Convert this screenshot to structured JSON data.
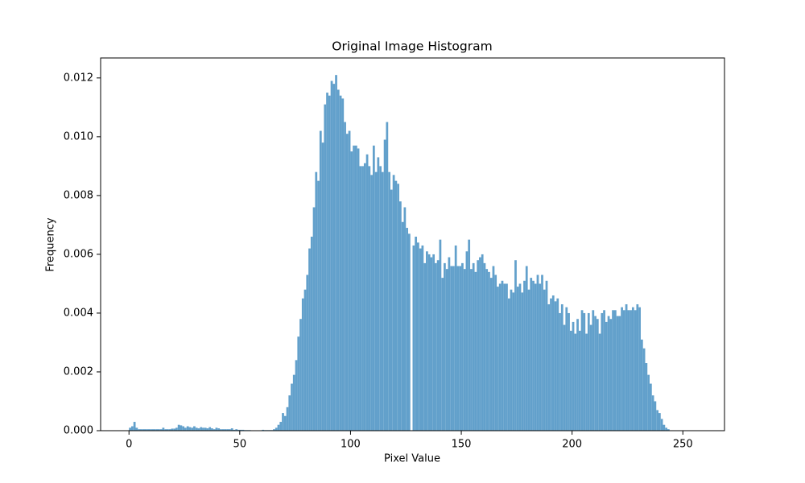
{
  "chart_data": {
    "type": "histogram",
    "title": "Original Image Histogram",
    "x_label": "Pixel Value",
    "y_label": "Frequency",
    "color": "#62a0cb",
    "bins": [
      0,
      1,
      2,
      3,
      4,
      5,
      6,
      7,
      8,
      9,
      10,
      11,
      12,
      13,
      14,
      15,
      16,
      17,
      18,
      19,
      20,
      21,
      22,
      23,
      24,
      25,
      26,
      27,
      28,
      29,
      30,
      31,
      32,
      33,
      34,
      35,
      36,
      37,
      38,
      39,
      40,
      41,
      42,
      43,
      44,
      45,
      46,
      47,
      48,
      49,
      50,
      51,
      52,
      53,
      54,
      55,
      56,
      57,
      58,
      59,
      60,
      61,
      62,
      63,
      64,
      65,
      66,
      67,
      68,
      69,
      70,
      71,
      72,
      73,
      74,
      75,
      76,
      77,
      78,
      79,
      80,
      81,
      82,
      83,
      84,
      85,
      86,
      87,
      88,
      89,
      90,
      91,
      92,
      93,
      94,
      95,
      96,
      97,
      98,
      99,
      100,
      101,
      102,
      103,
      104,
      105,
      106,
      107,
      108,
      109,
      110,
      111,
      112,
      113,
      114,
      115,
      116,
      117,
      118,
      119,
      120,
      121,
      122,
      123,
      124,
      125,
      126,
      127,
      128,
      129,
      130,
      131,
      132,
      133,
      134,
      135,
      136,
      137,
      138,
      139,
      140,
      141,
      142,
      143,
      144,
      145,
      146,
      147,
      148,
      149,
      150,
      151,
      152,
      153,
      154,
      155,
      156,
      157,
      158,
      159,
      160,
      161,
      162,
      163,
      164,
      165,
      166,
      167,
      168,
      169,
      170,
      171,
      172,
      173,
      174,
      175,
      176,
      177,
      178,
      179,
      180,
      181,
      182,
      183,
      184,
      185,
      186,
      187,
      188,
      189,
      190,
      191,
      192,
      193,
      194,
      195,
      196,
      197,
      198,
      199,
      200,
      201,
      202,
      203,
      204,
      205,
      206,
      207,
      208,
      209,
      210,
      211,
      212,
      213,
      214,
      215,
      216,
      217,
      218,
      219,
      220,
      221,
      222,
      223,
      224,
      225,
      226,
      227,
      228,
      229,
      230,
      231,
      232,
      233,
      234,
      235,
      236,
      237,
      238,
      239,
      240,
      241,
      242,
      243,
      244,
      245,
      246,
      247,
      248,
      249,
      250,
      251,
      252,
      253,
      254,
      255,
      256
    ],
    "counts": [
      0.0001,
      0.00015,
      0.0003,
      0.0001,
      5e-05,
      5e-05,
      5e-05,
      5e-05,
      5e-05,
      5e-05,
      5e-05,
      5e-05,
      5e-05,
      5e-05,
      5e-05,
      0.0001,
      5e-05,
      5e-05,
      5e-05,
      7e-05,
      7e-05,
      0.0001,
      0.0002,
      0.00018,
      0.00015,
      0.0001,
      0.00015,
      0.00012,
      0.0001,
      0.00015,
      0.0001,
      8e-05,
      0.00012,
      0.0001,
      0.0001,
      8e-05,
      0.00012,
      8e-05,
      5e-05,
      0.0001,
      8e-05,
      5e-05,
      5e-05,
      5e-05,
      5e-05,
      5e-05,
      8e-05,
      3e-05,
      5e-05,
      3e-05,
      3e-05,
      3e-05,
      2e-05,
      2e-05,
      2e-05,
      0,
      0,
      0,
      0,
      0,
      3e-05,
      2e-05,
      2e-05,
      2e-05,
      2e-05,
      5e-05,
      0.0001,
      0.0002,
      0.0003,
      0.0006,
      0.0005,
      0.0008,
      0.0012,
      0.0016,
      0.0019,
      0.0024,
      0.0032,
      0.0038,
      0.0045,
      0.0048,
      0.0053,
      0.0062,
      0.0066,
      0.0076,
      0.0088,
      0.0085,
      0.0102,
      0.0098,
      0.0111,
      0.0115,
      0.0114,
      0.0119,
      0.0118,
      0.0121,
      0.0116,
      0.0114,
      0.0113,
      0.0105,
      0.0101,
      0.0102,
      0.0095,
      0.0097,
      0.0097,
      0.0096,
      0.009,
      0.009,
      0.0091,
      0.0094,
      0.009,
      0.0087,
      0.0097,
      0.0088,
      0.0093,
      0.009,
      0.0088,
      0.0099,
      0.0105,
      0.0088,
      0.0082,
      0.0087,
      0.0085,
      0.0084,
      0.0078,
      0.0071,
      0.0076,
      0.0069,
      0.0067,
      0,
      0.0063,
      0.0066,
      0.0064,
      0.0062,
      0.0063,
      0.0057,
      0.0061,
      0.006,
      0.0059,
      0.006,
      0.0057,
      0.0058,
      0.0065,
      0.0052,
      0.0057,
      0.0055,
      0.0059,
      0.0056,
      0.0056,
      0.0063,
      0.0056,
      0.0056,
      0.0057,
      0.0055,
      0.0061,
      0.0065,
      0.0055,
      0.0057,
      0.0054,
      0.0058,
      0.0059,
      0.006,
      0.0057,
      0.0055,
      0.0054,
      0.0052,
      0.0056,
      0.0053,
      0.0049,
      0.005,
      0.0051,
      0.005,
      0.005,
      0.0045,
      0.0048,
      0.0047,
      0.0058,
      0.0049,
      0.005,
      0.0047,
      0.0051,
      0.0056,
      0.0048,
      0.0052,
      0.0051,
      0.005,
      0.0053,
      0.005,
      0.0053,
      0.0048,
      0.0051,
      0.0043,
      0.0045,
      0.0046,
      0.0044,
      0.0045,
      0.004,
      0.0043,
      0.0036,
      0.0042,
      0.004,
      0.0034,
      0.0037,
      0.0033,
      0.0038,
      0.0034,
      0.0041,
      0.004,
      0.0033,
      0.004,
      0.0036,
      0.0041,
      0.0039,
      0.0038,
      0.0033,
      0.004,
      0.0041,
      0.0037,
      0.0039,
      0.0038,
      0.0041,
      0.0041,
      0.0039,
      0.0039,
      0.0042,
      0.0041,
      0.0043,
      0.0041,
      0.0041,
      0.0042,
      0.0041,
      0.0043,
      0.0042,
      0.0031,
      0.0028,
      0.0023,
      0.0019,
      0.0016,
      0.0012,
      0.001,
      0.0007,
      0.0006,
      0.0004,
      0.0002,
      0.0001,
      5e-05,
      0,
      0,
      0,
      0,
      0,
      0,
      1e-05,
      0,
      0,
      0,
      0,
      0
    ],
    "xlim": [
      -12.8,
      268.8
    ],
    "xticks": [
      0,
      50,
      100,
      150,
      200,
      250
    ],
    "ylim": [
      0,
      0.01268
    ],
    "yticks": [
      {
        "value": 0,
        "label": "0.000"
      },
      {
        "value": 0.002,
        "label": "0.002"
      },
      {
        "value": 0.004,
        "label": "0.004"
      },
      {
        "value": 0.006,
        "label": "0.006"
      },
      {
        "value": 0.008,
        "label": "0.008"
      },
      {
        "value": 0.01,
        "label": "0.010"
      },
      {
        "value": 0.012,
        "label": "0.012"
      }
    ]
  }
}
